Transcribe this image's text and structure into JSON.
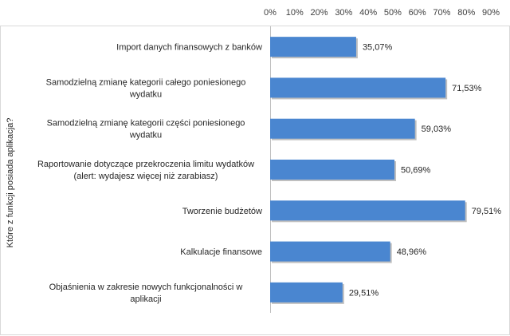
{
  "chart_data": {
    "type": "bar",
    "orientation": "horizontal",
    "ylabel": "Które z funkcji posiada aplikacja?",
    "xlim": [
      0,
      90
    ],
    "x_ticks": [
      "0%",
      "10%",
      "20%",
      "30%",
      "40%",
      "50%",
      "60%",
      "70%",
      "80%",
      "90%"
    ],
    "x_axis_position": "top",
    "grid": false,
    "bar_color": "#4a86d0",
    "categories": [
      [
        "Import danych finansowych z banków"
      ],
      [
        "Samodzielną zmianę kategorii całego poniesionego",
        "wydatku"
      ],
      [
        "Samodzielną zmianę kategorii części poniesionego",
        "wydatku"
      ],
      [
        "Raportowanie dotyczące przekroczenia limitu wydatków",
        "(alert: wydajesz więcej niż zarabiasz)"
      ],
      [
        "Tworzenie budżetów"
      ],
      [
        "Kalkulacje finansowe"
      ],
      [
        "Objaśnienia w zakresie nowych funkcjonalności w",
        "aplikacji"
      ]
    ],
    "values": [
      35.07,
      71.53,
      59.03,
      50.69,
      79.51,
      48.96,
      29.51
    ],
    "data_labels": [
      "35,07%",
      "71,53%",
      "59,03%",
      "50,69%",
      "79,51%",
      "48,96%",
      "29,51%"
    ]
  }
}
